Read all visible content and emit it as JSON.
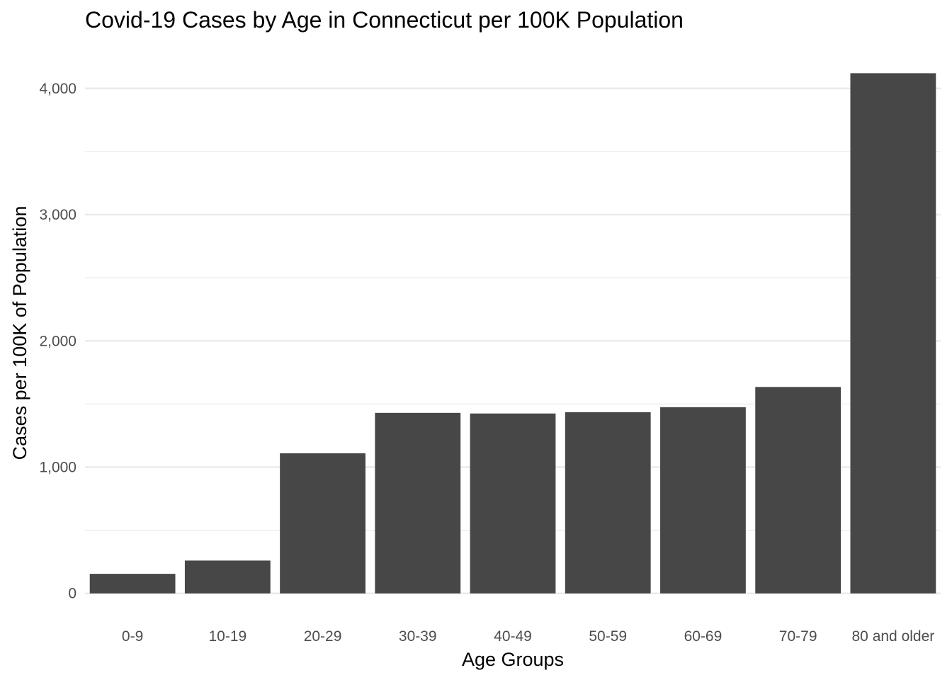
{
  "chart_data": {
    "type": "bar",
    "title": "Covid-19 Cases by Age in Connecticut per 100K Population",
    "xlabel": "Age Groups",
    "ylabel": "Cases per 100K of Population",
    "categories": [
      "0-9",
      "10-19",
      "20-29",
      "30-39",
      "40-49",
      "50-59",
      "60-69",
      "70-79",
      "80 and older"
    ],
    "values": [
      155,
      260,
      1110,
      1430,
      1425,
      1435,
      1475,
      1635,
      4120
    ],
    "ylim": [
      -80,
      4240
    ],
    "yticks": [
      0,
      1000,
      2000,
      3000,
      4000
    ],
    "ytick_labels": [
      "0",
      "1,000",
      "2,000",
      "3,000",
      "4,000"
    ],
    "grid": true,
    "bar_color": "#474747",
    "grid_color": "#ebebeb"
  }
}
